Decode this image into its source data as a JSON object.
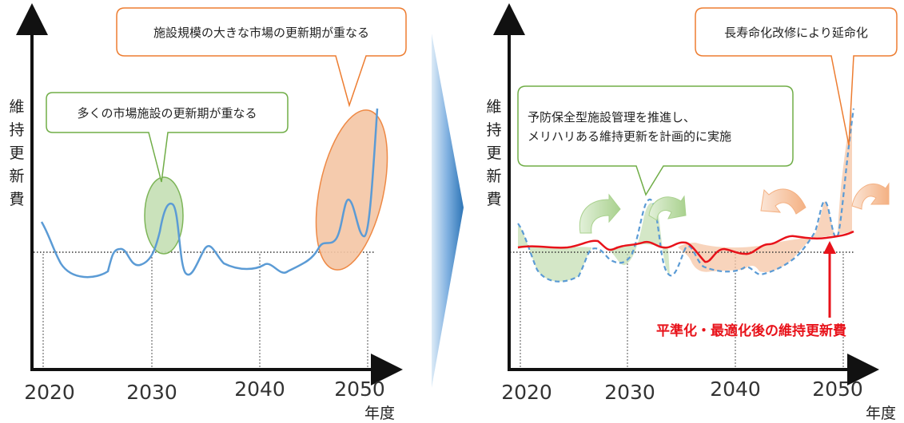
{
  "colors": {
    "axis": "#111111",
    "blue_line": "#5b9bd5",
    "red_line": "#e8121a",
    "green_fill": "#c5dfb4",
    "green_stroke": "#70ad47",
    "orange_fill": "#f5c6a5",
    "orange_stroke": "#ed7d31",
    "arrow_blue_light": "#bdd7ee",
    "arrow_blue_dark": "#2e75b6"
  },
  "left_panel": {
    "y_axis_label": "維持更新費",
    "x_axis_unit": "年度",
    "years": [
      "2020",
      "2030",
      "2040",
      "2050"
    ],
    "callout_green": "多くの市場施設の更新期が重なる",
    "callout_orange": "施設規模の大きな市場の更新期が重なる"
  },
  "right_panel": {
    "y_axis_label": "維持更新費",
    "x_axis_unit": "年度",
    "years": [
      "2020",
      "2030",
      "2040",
      "2050"
    ],
    "callout_green_line1": "予防保全型施設管理を推進し、",
    "callout_green_line2": "メリハリある維持更新を計画的に実施",
    "callout_orange": "長寿命化改修により延命化",
    "red_label": "平準化・最適化後の維持更新費"
  },
  "icons": {
    "right-arrow": "big-gradient-arrow",
    "curved-arrow": "curved-shift-arrow"
  }
}
